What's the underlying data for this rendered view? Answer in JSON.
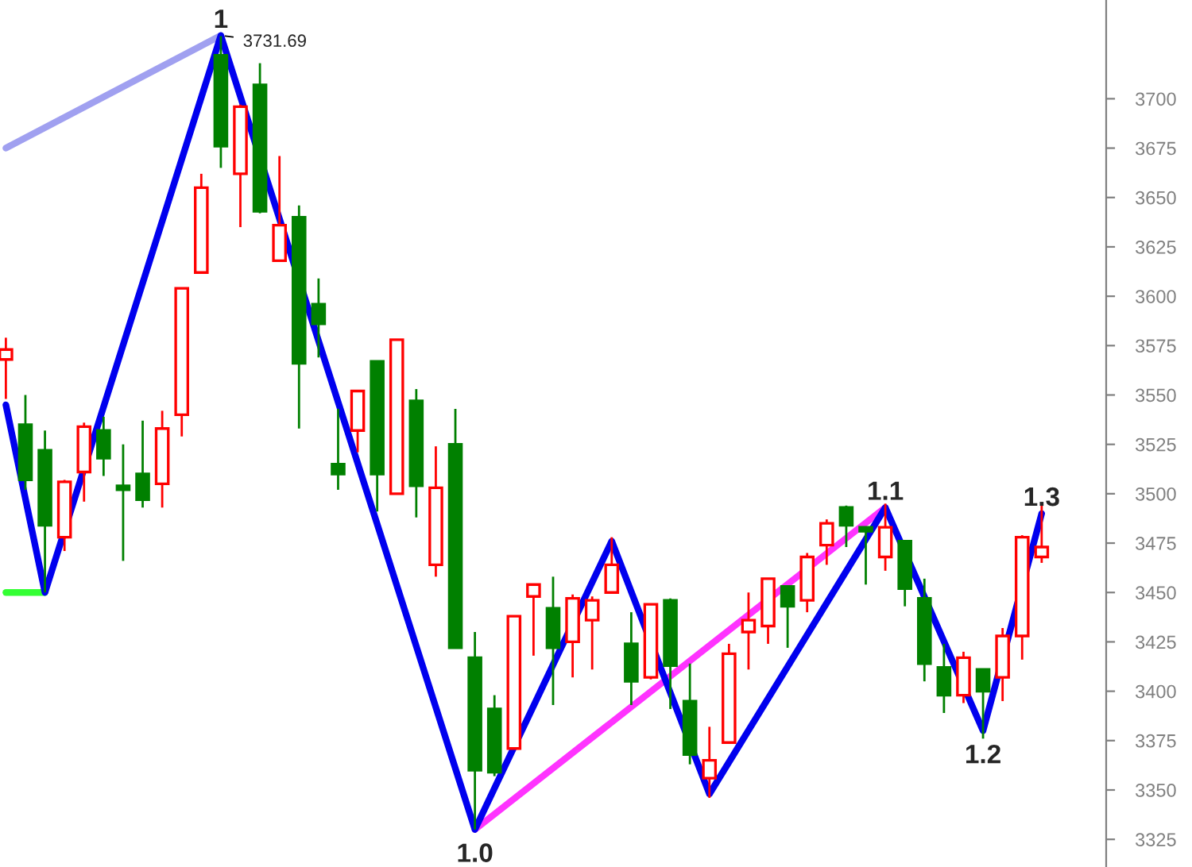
{
  "chart_data": {
    "type": "candlestick",
    "categories": [
      null,
      null,
      null,
      null,
      null,
      null,
      null,
      null,
      null,
      null,
      null,
      null,
      null,
      null,
      null,
      null,
      null,
      null,
      null,
      null,
      null,
      null,
      null,
      null,
      null,
      null,
      null,
      null,
      null,
      null,
      null,
      null,
      null,
      null,
      null,
      null,
      null,
      null,
      null,
      null,
      null,
      null,
      null,
      null,
      null,
      null,
      null,
      null,
      null,
      null,
      null,
      null,
      null,
      null
    ],
    "ohlc": [
      [
        3568,
        3579,
        3548,
        3573
      ],
      [
        3535,
        3550,
        3502,
        3507
      ],
      [
        3522,
        3532,
        3450,
        3484
      ],
      [
        3478,
        3507,
        3471,
        3506
      ],
      [
        3511,
        3536,
        3496,
        3534
      ],
      [
        3532,
        3539,
        3509,
        3518
      ],
      [
        3504,
        3525,
        3466,
        3502
      ],
      [
        3510,
        3537,
        3493,
        3497
      ],
      [
        3505,
        3542,
        3493,
        3533
      ],
      [
        3540,
        3604,
        3529,
        3604
      ],
      [
        3612,
        3662,
        3612,
        3655
      ],
      [
        3722,
        3731.69,
        3665,
        3676
      ],
      [
        3662,
        3697,
        3635,
        3696
      ],
      [
        3707,
        3718,
        3642,
        3643
      ],
      [
        3618,
        3671,
        3618,
        3636
      ],
      [
        3640,
        3646,
        3533,
        3566
      ],
      [
        3596,
        3609,
        3569,
        3586
      ],
      [
        3515,
        3543,
        3502,
        3510
      ],
      [
        3532,
        3552,
        3521,
        3552
      ],
      [
        3567,
        3567,
        3491,
        3510
      ],
      [
        3500,
        3578,
        3500,
        3578
      ],
      [
        3547,
        3553,
        3488,
        3504
      ],
      [
        3464,
        3524,
        3458,
        3503
      ],
      [
        3525,
        3543,
        3422,
        3422
      ],
      [
        3417,
        3430,
        3330,
        3360
      ],
      [
        3391,
        3398,
        3357,
        3359
      ],
      [
        3371,
        3438,
        3371,
        3438
      ],
      [
        3448,
        3454,
        3418,
        3454
      ],
      [
        3442,
        3458,
        3393,
        3422
      ],
      [
        3425,
        3449,
        3407,
        3447
      ],
      [
        3436,
        3448,
        3411,
        3446
      ],
      [
        3450,
        3478,
        3450,
        3464
      ],
      [
        3424,
        3440,
        3393,
        3405
      ],
      [
        3407,
        3444,
        3406,
        3444
      ],
      [
        3446,
        3447,
        3391,
        3413
      ],
      [
        3395,
        3414,
        3363,
        3368
      ],
      [
        3356,
        3382,
        3346,
        3365
      ],
      [
        3374,
        3424,
        3374,
        3419
      ],
      [
        3430,
        3450,
        3411,
        3436
      ],
      [
        3433,
        3457,
        3424,
        3457
      ],
      [
        3453,
        3453,
        3422,
        3443
      ],
      [
        3446,
        3470,
        3440,
        3468
      ],
      [
        3474,
        3487,
        3464,
        3485
      ],
      [
        3493,
        3494,
        3473,
        3484
      ],
      [
        3483,
        3483,
        3454,
        3481
      ],
      [
        3468,
        3495,
        3461,
        3483
      ],
      [
        3476,
        3476,
        3443,
        3452
      ],
      [
        3447,
        3457,
        3405,
        3414
      ],
      [
        3412,
        3424,
        3389,
        3398
      ],
      [
        3398,
        3420,
        3394,
        3417
      ],
      [
        3411,
        3411,
        3376,
        3400
      ],
      [
        3407,
        3432,
        3395,
        3428
      ],
      [
        3428,
        3479,
        3416,
        3478
      ],
      [
        3468,
        3494,
        3465,
        3473
      ]
    ],
    "series": [
      {
        "type": "line",
        "color": "#a0a0f0",
        "values": [
          3675,
          null,
          null,
          null,
          null,
          null,
          null,
          null,
          null,
          null,
          null,
          3732,
          null,
          null,
          null,
          null,
          null,
          null,
          null,
          null,
          null,
          null,
          null,
          null,
          null,
          null,
          null,
          null,
          null,
          null,
          null,
          null,
          null,
          null,
          null,
          null,
          null,
          null,
          null,
          null,
          null,
          null,
          null,
          null,
          null,
          null,
          null,
          null,
          null,
          null,
          null,
          null,
          null,
          null
        ]
      },
      {
        "type": "line",
        "color": "#33ff33",
        "values": [
          3450,
          3450,
          3450,
          null,
          null,
          null,
          null,
          null,
          null,
          null,
          null,
          null,
          null,
          null,
          null,
          null,
          null,
          null,
          null,
          null,
          null,
          null,
          null,
          null,
          null,
          null,
          null,
          null,
          null,
          null,
          null,
          null,
          null,
          null,
          null,
          null,
          null,
          null,
          null,
          null,
          null,
          null,
          null,
          null,
          null,
          null,
          null,
          null,
          null,
          null,
          null,
          null,
          null,
          null
        ]
      },
      {
        "type": "line",
        "color": "#ff33ff",
        "values": [
          null,
          null,
          null,
          null,
          null,
          null,
          null,
          null,
          null,
          null,
          null,
          null,
          null,
          null,
          null,
          null,
          null,
          null,
          null,
          null,
          null,
          null,
          null,
          null,
          3330,
          null,
          null,
          null,
          null,
          null,
          null,
          null,
          null,
          null,
          null,
          null,
          null,
          null,
          null,
          null,
          null,
          null,
          null,
          null,
          null,
          3493,
          null,
          null,
          null,
          null,
          null,
          null,
          null,
          null
        ]
      },
      {
        "type": "line",
        "color": "#0000ee",
        "values": [
          3545,
          null,
          3450,
          null,
          null,
          null,
          null,
          null,
          null,
          null,
          null,
          3732,
          null,
          null,
          null,
          null,
          null,
          null,
          null,
          null,
          null,
          null,
          null,
          null,
          3330,
          null,
          null,
          null,
          null,
          null,
          null,
          3476,
          null,
          null,
          null,
          null,
          3348,
          null,
          null,
          null,
          null,
          null,
          null,
          null,
          null,
          3493,
          null,
          null,
          null,
          null,
          3380,
          null,
          null,
          3490
        ]
      }
    ],
    "ylim": [
      3311,
      3750
    ],
    "yticks": [
      3325,
      3350,
      3375,
      3400,
      3425,
      3450,
      3475,
      3500,
      3525,
      3550,
      3575,
      3600,
      3625,
      3650,
      3675,
      3700
    ],
    "tick_labels": "y",
    "grid": false,
    "annotations": [
      {
        "text": "1",
        "y": 3731.69
      },
      "3731.69",
      {
        "text": "1.0",
        "y": 3330
      },
      {
        "text": "1.1",
        "y": 3493
      },
      {
        "text": "1.2",
        "y": 3380
      },
      {
        "text": "1.3",
        "y": 3490
      }
    ]
  }
}
